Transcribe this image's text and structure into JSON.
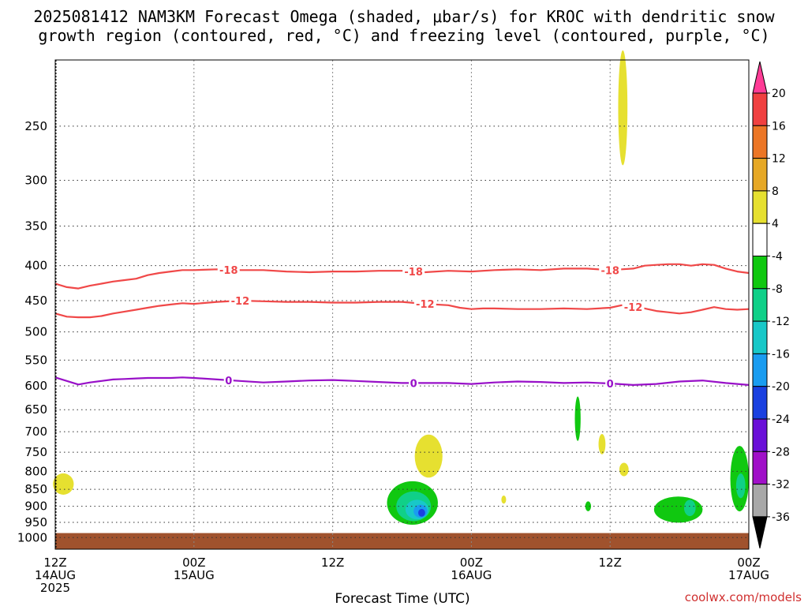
{
  "title_lines": [
    "2025081412 NAM3KM Forecast Omega (shaded, μbar/s) for KROC with dendritic snow",
    "growth region (contoured, red, °C) and freezing level (contoured, purple, °C)"
  ],
  "credit": "coolwx.com/models",
  "chart_data": {
    "type": "heatmap",
    "title": "2025081412 NAM3KM Forecast Omega (shaded, μbar/s) for KROC with dendritic snow growth region (contoured, red, °C) and freezing level (contoured, purple, °C)",
    "xlabel": "Forecast Time (UTC)",
    "ylabel": "",
    "x_units": "forecast hour",
    "xlim": [
      0,
      60
    ],
    "y_units": "hPa",
    "ylim": [
      1040,
      200
    ],
    "y_scale": "log",
    "grid": true,
    "x_ticks": [
      {
        "hour": 0,
        "lines": [
          "12Z",
          "14AUG",
          "2025"
        ]
      },
      {
        "hour": 12,
        "lines": [
          "00Z",
          "15AUG"
        ]
      },
      {
        "hour": 24,
        "lines": [
          "12Z"
        ]
      },
      {
        "hour": 36,
        "lines": [
          "00Z",
          "16AUG"
        ]
      },
      {
        "hour": 48,
        "lines": [
          "12Z"
        ]
      },
      {
        "hour": 60,
        "lines": [
          "00Z",
          "17AUG"
        ]
      }
    ],
    "y_ticks": [
      250,
      300,
      350,
      400,
      450,
      500,
      550,
      600,
      650,
      700,
      750,
      800,
      850,
      900,
      950,
      1000
    ],
    "colorbar": {
      "labels": [
        20,
        16,
        12,
        8,
        4,
        -4,
        -8,
        -12,
        -16,
        -20,
        -24,
        -28,
        -32,
        -36
      ],
      "colors": [
        "#ff3c96",
        "#f04040",
        "#ec7626",
        "#e6a826",
        "#e6e030",
        "#ffffff",
        "#10c810",
        "#10d088",
        "#18c8c8",
        "#1a9cf0",
        "#1a40e0",
        "#6a10d8",
        "#a010c8",
        "#a8a8a8",
        "#000000"
      ]
    },
    "contours": [
      {
        "name": "-18",
        "color": "#f04848",
        "label": "-18",
        "x": [
          0,
          1,
          2,
          3,
          4,
          5,
          6,
          7,
          8,
          9,
          10,
          11,
          12,
          14,
          16,
          18,
          20,
          22,
          24,
          26,
          28,
          30,
          32,
          34,
          36,
          38,
          40,
          42,
          44,
          46,
          48,
          49,
          50,
          51,
          52,
          53,
          54,
          55,
          56,
          57,
          58,
          59,
          60
        ],
        "y": [
          425,
          430,
          432,
          428,
          425,
          422,
          420,
          418,
          413,
          410,
          408,
          406,
          406,
          405,
          406,
          406,
          408,
          409,
          408,
          408,
          407,
          407,
          409,
          407,
          408,
          406,
          405,
          406,
          404,
          404,
          406,
          405,
          404,
          400,
          399,
          398,
          398,
          400,
          398,
          399,
          404,
          408,
          410
        ],
        "label_at": [
          15,
          31,
          48
        ]
      },
      {
        "name": "-12",
        "color": "#f04848",
        "label": "-12",
        "x": [
          0,
          1,
          2,
          3,
          4,
          5,
          6,
          7,
          8,
          9,
          10,
          11,
          12,
          14,
          16,
          18,
          20,
          22,
          24,
          26,
          28,
          30,
          32,
          34,
          35,
          36,
          37,
          38,
          40,
          42,
          44,
          46,
          48,
          49,
          50,
          51,
          52,
          53,
          54,
          55,
          56,
          57,
          58,
          59,
          60
        ],
        "y": [
          470,
          475,
          476,
          476,
          474,
          470,
          467,
          464,
          461,
          458,
          456,
          454,
          455,
          452,
          450,
          451,
          452,
          452,
          453,
          453,
          452,
          452,
          455,
          457,
          461,
          463,
          462,
          462,
          463,
          463,
          462,
          463,
          461,
          457,
          460,
          462,
          466,
          468,
          470,
          468,
          464,
          460,
          463,
          464,
          463
        ],
        "label_at": [
          16,
          32,
          50
        ]
      },
      {
        "name": "0",
        "color": "#9810c8",
        "label": "0",
        "x": [
          0,
          1,
          2,
          3,
          4,
          5,
          6,
          7,
          8,
          9,
          10,
          11,
          12,
          14,
          16,
          18,
          20,
          22,
          24,
          26,
          28,
          30,
          32,
          34,
          36,
          38,
          40,
          42,
          44,
          46,
          48,
          50,
          52,
          54,
          56,
          58,
          60
        ],
        "y": [
          583,
          590,
          597,
          593,
          590,
          587,
          586,
          585,
          584,
          584,
          584,
          583,
          584,
          587,
          590,
          593,
          591,
          589,
          588,
          590,
          592,
          594,
          594,
          594,
          596,
          593,
          591,
          592,
          594,
          593,
          595,
          598,
          596,
          591,
          589,
          594,
          598
        ],
        "label_at": [
          15,
          31,
          48
        ]
      }
    ],
    "shaded_regions": [
      {
        "level": "4 to 8",
        "color": "#e6e030",
        "center": [
          49.1,
          235
        ],
        "extent": [
          0.4,
          45
        ]
      },
      {
        "level": "4 to 8",
        "color": "#e6e030",
        "center": [
          0.7,
          835
        ],
        "extent": [
          0.9,
          30
        ]
      },
      {
        "level": "4 to 8",
        "color": "#e6e030",
        "center": [
          32.3,
          760
        ],
        "extent": [
          1.2,
          55
        ]
      },
      {
        "level": "4 to 8",
        "color": "#e6e030",
        "center": [
          47.3,
          730
        ],
        "extent": [
          0.3,
          25
        ]
      },
      {
        "level": "4 to 8",
        "color": "#e6e030",
        "center": [
          49.2,
          795
        ],
        "extent": [
          0.4,
          18
        ]
      },
      {
        "level": "4 to 8",
        "color": "#e6e030",
        "center": [
          38.8,
          880
        ],
        "extent": [
          0.2,
          12
        ]
      },
      {
        "level": "-4 to -8",
        "color": "#10c810",
        "center": [
          30.9,
          890
        ],
        "extent": [
          2.2,
          65
        ]
      },
      {
        "level": "-8 to -12",
        "color": "#10d088",
        "center": [
          31.0,
          900
        ],
        "extent": [
          1.5,
          45
        ]
      },
      {
        "level": "-12 to -16",
        "color": "#18c8c8",
        "center": [
          31.3,
          910
        ],
        "extent": [
          1.0,
          30
        ]
      },
      {
        "level": "-16 to -20",
        "color": "#1a9cf0",
        "center": [
          31.6,
          915
        ],
        "extent": [
          0.6,
          20
        ]
      },
      {
        "level": "-20 to -24",
        "color": "#1a40e0",
        "center": [
          31.7,
          920
        ],
        "extent": [
          0.3,
          12
        ]
      },
      {
        "level": "-4 to -8",
        "color": "#10c810",
        "center": [
          45.2,
          670
        ],
        "extent": [
          0.25,
          50
        ]
      },
      {
        "level": "-4 to -8",
        "color": "#10c810",
        "center": [
          46.1,
          900
        ],
        "extent": [
          0.25,
          15
        ]
      },
      {
        "level": "-4 to -8",
        "color": "#10c810",
        "center": [
          53.9,
          910
        ],
        "extent": [
          2.1,
          40
        ]
      },
      {
        "level": "-8 to -12",
        "color": "#10d088",
        "center": [
          54.9,
          905
        ],
        "extent": [
          0.5,
          25
        ]
      },
      {
        "level": "-4 to -8",
        "color": "#10c810",
        "center": [
          59.2,
          820
        ],
        "extent": [
          0.8,
          90
        ]
      },
      {
        "level": "-8 to -12",
        "color": "#10d088",
        "center": [
          59.3,
          840
        ],
        "extent": [
          0.4,
          35
        ]
      }
    ],
    "terrain": {
      "color": "#a0522d",
      "surface_pressure": 985
    }
  }
}
